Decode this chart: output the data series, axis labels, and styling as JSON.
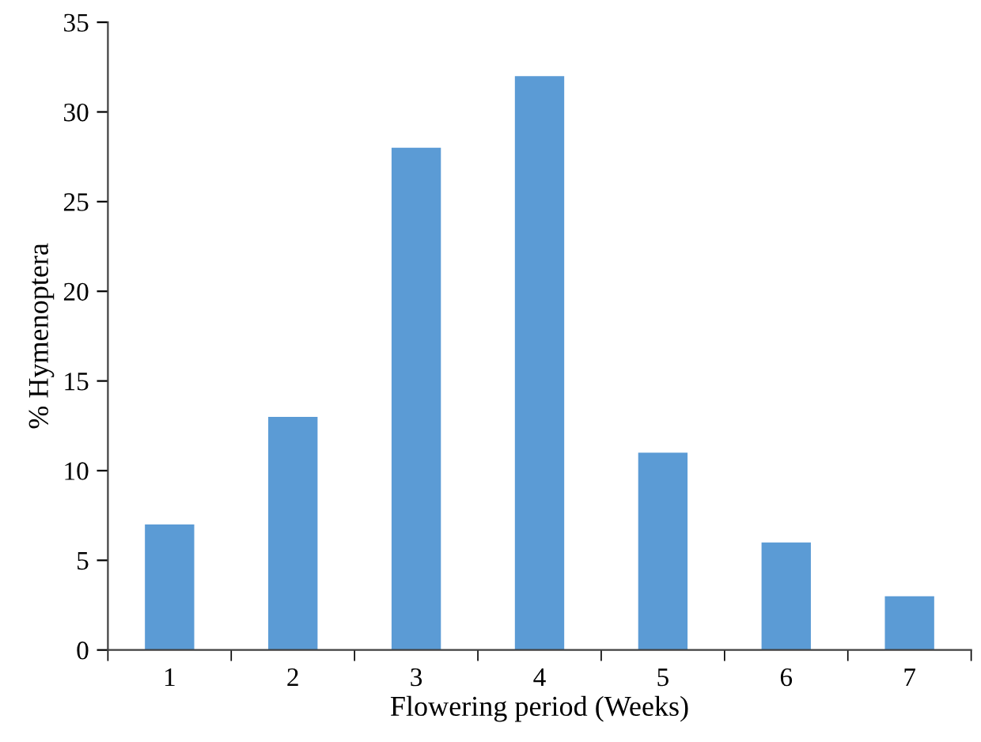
{
  "chart_data": {
    "type": "bar",
    "xlabel": "Flowering period (Weeks)",
    "ylabel": "% Hymenoptera",
    "categories": [
      "1",
      "2",
      "3",
      "4",
      "5",
      "6",
      "7"
    ],
    "values": [
      7,
      13,
      28,
      32,
      11,
      6,
      3
    ],
    "color": "#5b9bd5",
    "ylim": [
      0,
      35
    ],
    "yticks": [
      0,
      5,
      10,
      15,
      20,
      25,
      30,
      35
    ],
    "grid": false,
    "legend": false
  }
}
